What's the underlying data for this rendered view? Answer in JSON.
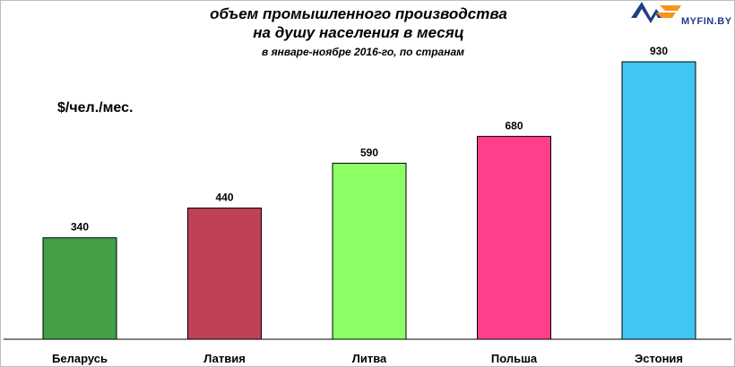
{
  "brand": {
    "logo_text": "MYFIN.BY",
    "colors": {
      "blue": "#1f3c88",
      "orange": "#f7941d"
    }
  },
  "chart_data": {
    "type": "bar",
    "title": "объем промышленного производства",
    "title_line2": "на душу населения в месяц",
    "subtitle": "в январе-ноябре 2016-го, по странам",
    "ylabel": "$/чел./мес.",
    "categories": [
      "Беларусь",
      "Латвия",
      "Литва",
      "Польша",
      "Эстония"
    ],
    "values": [
      340,
      440,
      590,
      680,
      930
    ],
    "colors": [
      "#43a047",
      "#bf4157",
      "#8cff66",
      "#ff3f8c",
      "#40c6f0"
    ],
    "ylim": [
      0,
      1000
    ],
    "grid": false,
    "legend": "none"
  }
}
